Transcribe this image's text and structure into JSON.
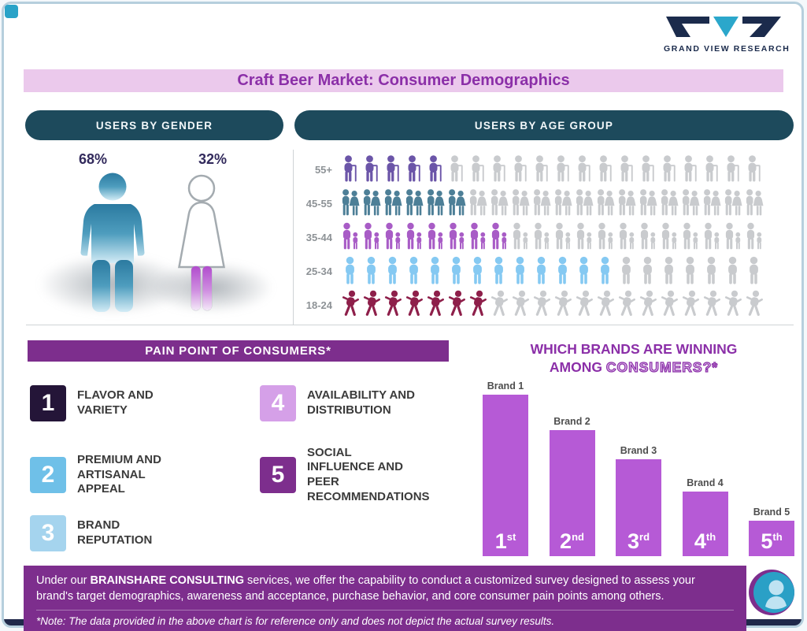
{
  "logo": {
    "text": "GRAND VIEW RESEARCH"
  },
  "title": "Craft Beer Market: Consumer Demographics",
  "gender_section": {
    "header": "USERS BY GENDER",
    "male_label": "68%",
    "female_label": "32%"
  },
  "age_section": {
    "header": "USERS BY AGE GROUP"
  },
  "pain_points": {
    "header": "PAIN POINT OF CONSUMERS*",
    "items": [
      {
        "number": "1",
        "label": "FLAVOR AND VARIETY",
        "color": "#241538"
      },
      {
        "number": "2",
        "label": "PREMIUM AND ARTISANAL APPEAL",
        "color": "#6fc0e8"
      },
      {
        "number": "3",
        "label": "BRAND REPUTATION",
        "color": "#a5d4ee"
      },
      {
        "number": "4",
        "label": "AVAILABILITY AND DISTRIBUTION",
        "color": "#d5a0e8"
      },
      {
        "number": "5",
        "label": "SOCIAL INFLUENCE AND PEER RECOMMENDATIONS",
        "color": "#7d2e8d"
      }
    ]
  },
  "brands_section": {
    "title_line1": "WHICH BRANDS ARE WINNING",
    "title_line2_plain": "AMONG",
    "title_line2_outline": "CONSUMERS?*"
  },
  "chart_data": [
    {
      "type": "pictogram",
      "title": "USERS BY GENDER",
      "categories": [
        "Male",
        "Female"
      ],
      "values": [
        68,
        32
      ],
      "unit": "%"
    },
    {
      "type": "pictogram",
      "title": "USERS BY AGE GROUP",
      "categories": [
        "55+",
        "45-55",
        "35-44",
        "25-34",
        "18-24"
      ],
      "icons_per_row": 20,
      "icons_colored": [
        5,
        6,
        8,
        13,
        7
      ],
      "values_pct_estimate": [
        25,
        30,
        40,
        65,
        35
      ],
      "colors": [
        "#6b55a8",
        "#4d7f97",
        "#a85cc6",
        "#85c9f2",
        "#8e1f4a"
      ],
      "icon_gray": "#c9cbce",
      "icons": [
        "elderly",
        "couple",
        "parentchild",
        "person",
        "runner"
      ]
    },
    {
      "type": "bar",
      "title": "WHICH BRANDS ARE WINNING AMONG CONSUMERS?*",
      "categories": [
        "Brand 1",
        "Brand 2",
        "Brand 3",
        "Brand 4",
        "Brand 5"
      ],
      "values": [
        100,
        78,
        60,
        40,
        22
      ],
      "value_note": "relative bar heights, no numeric axis shown",
      "rank_labels": [
        "1st",
        "2nd",
        "3rd",
        "4th",
        "5th"
      ],
      "bar_color": "#b65ad6"
    }
  ],
  "footer": {
    "text_prefix": "Under our ",
    "text_bold": "BRAINSHARE CONSULTING",
    "text_suffix": " services, we offer the capability to conduct a customized survey designed to assess your brand's target demographics, awareness and acceptance, purchase behavior, and core consumer pain points among others.",
    "note": "*Note: The data provided in the above chart is for reference only and does not depict the actual survey results."
  }
}
